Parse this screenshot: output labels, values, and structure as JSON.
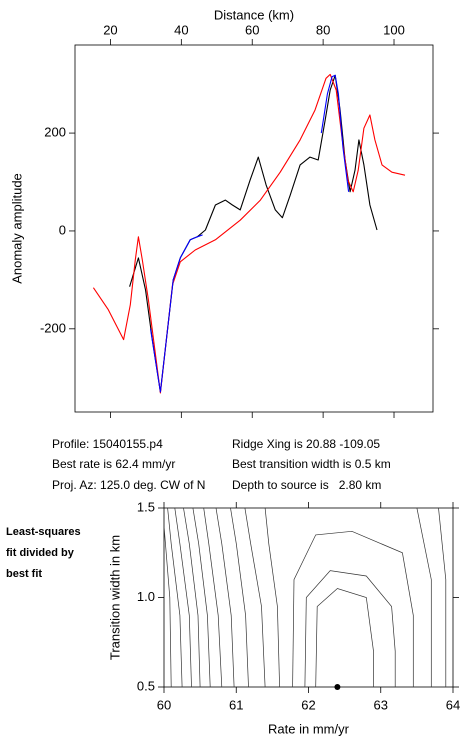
{
  "chart_data": [
    {
      "type": "line",
      "xlabel": "Distance (km)",
      "ylabel": "Anomaly amplitude",
      "x_axis_position": "top",
      "xlim": [
        10,
        111
      ],
      "ylim": [
        -370,
        380
      ],
      "xticks": [
        20,
        40,
        60,
        80,
        100
      ],
      "yticks": [
        -200,
        0,
        200
      ],
      "series": [
        {
          "color": "#000000",
          "x": [
            25.4,
            27.9,
            29.9,
            31.8,
            34.1,
            36.1,
            37.7,
            39.7,
            42.5,
            44.5,
            46.8,
            49.6,
            52.4,
            54.4,
            56.6,
            59.4,
            61.7,
            63.9,
            66.5,
            68.5,
            70.7,
            73.5,
            76.3,
            78.6,
            80.6,
            82.0,
            83.4,
            84.8,
            86.2,
            87.6,
            89.0,
            90.1,
            91.5,
            93.2,
            95.2
          ],
          "values": [
            -114,
            -55,
            -120,
            -222,
            -329,
            -202,
            -100,
            -55,
            -18,
            -12,
            2,
            53,
            63,
            53,
            43,
            104,
            151,
            94,
            43,
            27,
            73,
            135,
            151,
            145,
            227,
            288,
            318,
            247,
            145,
            80,
            124,
            186,
            135,
            53,
            2
          ]
        },
        {
          "color": "#ff0000",
          "x": [
            15.2,
            19.4,
            23.7,
            25.6,
            27.0,
            27.9,
            29.0,
            30.7,
            32.7,
            34.1,
            35.8,
            37.5,
            39.7,
            43.9,
            49.6,
            56.6,
            62.3,
            67.9,
            73.5,
            77.7,
            80.8,
            82.0,
            83.7,
            85.4,
            87.0,
            88.5,
            89.9,
            91.5,
            93.2,
            94.6,
            96.6,
            99.4,
            103.1
          ],
          "values": [
            -116,
            -161,
            -222,
            -151,
            -59,
            -12,
            -59,
            -141,
            -253,
            -331,
            -222,
            -110,
            -63,
            -39,
            -18,
            22,
            63,
            120,
            186,
            247,
            312,
            320,
            288,
            186,
            104,
            80,
            124,
            210,
            237,
            186,
            135,
            120,
            114
          ]
        },
        {
          "color": "#0000ff",
          "x": [
            31.3,
            34.1,
            36.1,
            37.7,
            39.7,
            42.5,
            44.5,
            46.0,
            60.0,
            79.5,
            81.2,
            82.5,
            83.4,
            84.3,
            85.6,
            87.2
          ],
          "values": [
            -200,
            -329,
            -202,
            -100,
            -55,
            -18,
            -12,
            -8,
            null,
            200,
            280,
            315,
            318,
            280,
            170,
            80
          ]
        }
      ]
    },
    {
      "type": "contour",
      "xlabel": "Rate in mm/yr",
      "ylabel": "Transition width in km",
      "xlim": [
        60,
        64
      ],
      "ylim": [
        0.5,
        1.5
      ],
      "xticks": [
        60,
        61,
        62,
        63,
        64
      ],
      "yticks": [
        {
          "value": 0.5,
          "label": "0.5"
        },
        {
          "value": 1.0,
          "label": "1.0"
        },
        {
          "value": 1.5,
          "label": "1.5"
        }
      ],
      "contour_color": "#333333",
      "contours": [
        {
          "x": [
            60.1,
            60.08,
            60.0
          ],
          "y": [
            0.5,
            1.0,
            1.4
          ]
        },
        {
          "x": [
            60.25,
            60.22,
            60.1,
            60.05
          ],
          "y": [
            0.5,
            0.9,
            1.3,
            1.5
          ]
        },
        {
          "x": [
            60.38,
            60.35,
            60.22,
            60.15
          ],
          "y": [
            0.5,
            0.9,
            1.3,
            1.5
          ]
        },
        {
          "x": [
            60.5,
            60.47,
            60.35,
            60.27
          ],
          "y": [
            0.5,
            0.9,
            1.3,
            1.5
          ]
        },
        {
          "x": [
            60.64,
            60.6,
            60.48,
            60.4
          ],
          "y": [
            0.5,
            0.9,
            1.3,
            1.5
          ]
        },
        {
          "x": [
            60.8,
            60.75,
            60.62,
            60.55
          ],
          "y": [
            0.5,
            0.9,
            1.3,
            1.5
          ]
        },
        {
          "x": [
            60.97,
            60.93,
            60.8,
            60.72
          ],
          "y": [
            0.5,
            0.9,
            1.3,
            1.5
          ]
        },
        {
          "x": [
            61.17,
            61.13,
            61.0,
            60.92
          ],
          "y": [
            0.5,
            0.9,
            1.3,
            1.5
          ]
        },
        {
          "x": [
            61.4,
            61.35,
            61.2,
            61.12
          ],
          "y": [
            0.5,
            0.95,
            1.3,
            1.5
          ]
        },
        {
          "x": [
            61.6,
            61.57,
            61.45,
            61.4
          ],
          "y": [
            0.5,
            0.95,
            1.3,
            1.5
          ]
        },
        {
          "x": [
            61.78,
            61.8,
            62.1,
            62.6,
            63.3,
            63.45,
            63.45
          ],
          "y": [
            0.5,
            1.1,
            1.35,
            1.37,
            1.25,
            0.9,
            0.5
          ]
        },
        {
          "x": [
            61.95,
            61.97,
            62.3,
            62.8,
            63.15,
            63.2,
            63.2
          ],
          "y": [
            0.5,
            1.0,
            1.15,
            1.12,
            0.95,
            0.7,
            0.5
          ]
        },
        {
          "x": [
            62.1,
            62.12,
            62.4,
            62.8,
            62.9,
            62.9
          ],
          "y": [
            0.5,
            0.95,
            1.05,
            1.0,
            0.7,
            0.5
          ]
        },
        {
          "x": [
            63.7,
            63.7,
            63.5
          ],
          "y": [
            0.5,
            1.1,
            1.5
          ]
        },
        {
          "x": [
            63.9,
            63.9,
            63.8
          ],
          "y": [
            0.5,
            1.1,
            1.5
          ]
        }
      ],
      "best": {
        "x": 62.4,
        "y": 0.5,
        "color": "#000000"
      }
    }
  ],
  "info": {
    "profile": "Profile: 15040155.p4",
    "ridge": "Ridge Xing is 20.88 -109.05",
    "rate": "Best rate is 62.4 mm/yr",
    "width": "Best transition width is 0.5 km",
    "azimuth": "Proj. Az: 125.0 deg. CW of N",
    "depth": "Depth to source is   2.80 km"
  },
  "note": [
    "Least-squares",
    "fit divided by",
    "best fit"
  ]
}
